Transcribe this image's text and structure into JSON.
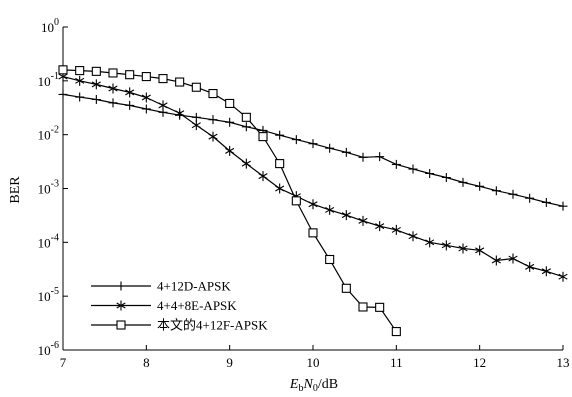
{
  "chart_data": {
    "type": "line",
    "title": "",
    "ylabel": "BER",
    "xlabel": {
      "symbol_1": "E",
      "subscript_1": "b",
      "symbol_2": "N",
      "subscript_2": "0",
      "suffix": "/dB"
    },
    "xlim": [
      7,
      13
    ],
    "ylim": [
      1e-06,
      1
    ],
    "yscale": "log",
    "grid": false,
    "legend_placement": "bottom-left",
    "x_ticks": [
      "7",
      "8",
      "9",
      "10",
      "11",
      "12",
      "13"
    ],
    "y_ticks": [
      {
        "base": "10",
        "exp": "0"
      },
      {
        "base": "10",
        "exp": "-1"
      },
      {
        "base": "10",
        "exp": "-2"
      },
      {
        "base": "10",
        "exp": "-3"
      },
      {
        "base": "10",
        "exp": "-4"
      },
      {
        "base": "10",
        "exp": "-5"
      },
      {
        "base": "10",
        "exp": "-6"
      }
    ],
    "series": [
      {
        "name": "4+12D-APSK",
        "marker": "plus",
        "color": "#000000",
        "x": [
          7,
          7.2,
          7.4,
          7.6,
          7.8,
          8,
          8.2,
          8.4,
          8.6,
          8.8,
          9,
          9.2,
          9.4,
          9.6,
          9.8,
          10,
          10.2,
          10.4,
          10.6,
          10.8,
          11,
          11.2,
          11.4,
          11.6,
          11.8,
          12,
          12.2,
          12.4,
          12.6,
          12.8,
          13
        ],
        "y": [
          0.056,
          0.05,
          0.045,
          0.039,
          0.035,
          0.03,
          0.026,
          0.023,
          0.021,
          0.019,
          0.017,
          0.014,
          0.012,
          0.0098,
          0.0081,
          0.0068,
          0.0056,
          0.0047,
          0.0038,
          0.0039,
          0.0028,
          0.0023,
          0.0019,
          0.0016,
          0.0013,
          0.0011,
          0.00091,
          0.00078,
          0.00066,
          0.00055,
          0.00047
        ]
      },
      {
        "name": "4+4+8E-APSK",
        "marker": "asterisk",
        "color": "#000000",
        "x": [
          7,
          7.2,
          7.4,
          7.6,
          7.8,
          8,
          8.2,
          8.4,
          8.6,
          8.8,
          9,
          9.2,
          9.4,
          9.6,
          9.8,
          10,
          10.2,
          10.4,
          10.6,
          10.8,
          11,
          11.2,
          11.4,
          11.6,
          11.8,
          12,
          12.2,
          12.4,
          12.6,
          12.8,
          13
        ],
        "y": [
          0.12,
          0.1,
          0.086,
          0.072,
          0.061,
          0.049,
          0.035,
          0.025,
          0.015,
          0.0092,
          0.005,
          0.0029,
          0.0017,
          0.001,
          0.00072,
          0.00051,
          0.0004,
          0.00032,
          0.00025,
          0.0002,
          0.00017,
          0.00013,
          0.0001,
          8.8e-05,
          7.7e-05,
          7.1e-05,
          4.6e-05,
          5e-05,
          3.5e-05,
          2.9e-05,
          2.3e-05
        ]
      },
      {
        "name": "本文的4+12F-APSK",
        "marker": "square",
        "color": "#000000",
        "x": [
          7,
          7.2,
          7.4,
          7.6,
          7.8,
          8,
          8.2,
          8.4,
          8.6,
          8.8,
          9,
          9.2,
          9.4,
          9.6,
          9.8,
          10,
          10.2,
          10.4,
          10.6,
          10.8,
          11
        ],
        "y": [
          0.16,
          0.155,
          0.15,
          0.14,
          0.13,
          0.12,
          0.11,
          0.095,
          0.076,
          0.058,
          0.038,
          0.021,
          0.0092,
          0.0029,
          0.00059,
          0.00015,
          4.8e-05,
          1.4e-05,
          6.3e-06,
          6.2e-06,
          2.2e-06
        ]
      }
    ]
  }
}
